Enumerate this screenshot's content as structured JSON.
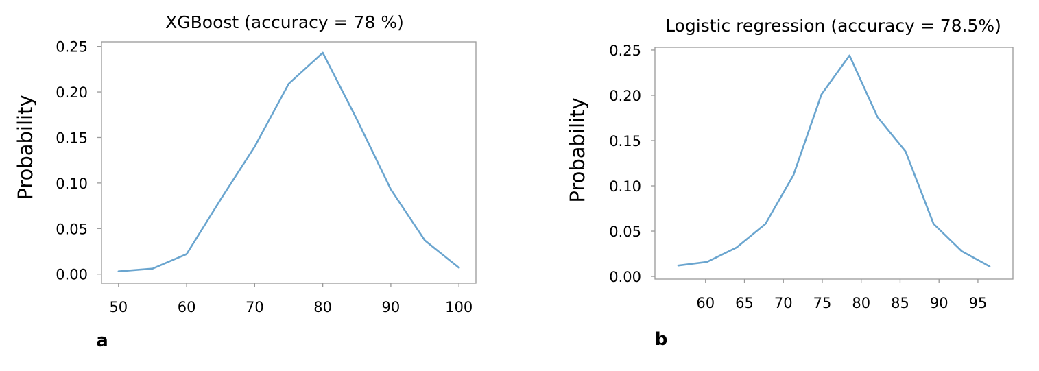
{
  "chart_data": [
    {
      "type": "line",
      "panel_label": "a",
      "title": "XGBoost (accuracy = 78 %)",
      "xlabel": "",
      "ylabel": "Probability",
      "xlim": [
        47.5,
        102.5
      ],
      "ylim": [
        -0.01,
        0.255
      ],
      "xticks": [
        50,
        60,
        70,
        80,
        90,
        100
      ],
      "xtick_labels": [
        "50",
        "60",
        "70",
        "80",
        "90",
        "100"
      ],
      "yticks": [
        0.0,
        0.05,
        0.1,
        0.15,
        0.2,
        0.25
      ],
      "ytick_labels": [
        "0.00",
        "0.05",
        "0.10",
        "0.15",
        "0.20",
        "0.25"
      ],
      "series": [
        {
          "name": "XGBoost",
          "color": "#6aa5cf",
          "x": [
            50,
            55,
            60,
            65,
            70,
            75,
            80,
            85,
            90,
            95,
            100
          ],
          "y": [
            0.003,
            0.006,
            0.022,
            0.082,
            0.14,
            0.209,
            0.243,
            0.17,
            0.093,
            0.037,
            0.007
          ]
        }
      ]
    },
    {
      "type": "line",
      "panel_label": "b",
      "title": "Logistic regression (accuracy = 78.5%)",
      "xlabel": "",
      "ylabel": "Probability",
      "xlim": [
        53.5,
        99.5
      ],
      "ylim": [
        -0.003,
        0.253
      ],
      "xticks": [
        60,
        65,
        70,
        75,
        80,
        85,
        90,
        95
      ],
      "xtick_labels": [
        "60",
        "65",
        "70",
        "75",
        "80",
        "85",
        "90",
        "95"
      ],
      "yticks": [
        0.0,
        0.05,
        0.1,
        0.15,
        0.2,
        0.25
      ],
      "ytick_labels": [
        "0.00",
        "0.05",
        "0.10",
        "0.15",
        "0.20",
        "0.25"
      ],
      "series": [
        {
          "name": "Logistic regression",
          "color": "#6aa5cf",
          "x": [
            56.5,
            60.2,
            64,
            67.7,
            71.3,
            74.9,
            78.5,
            82.1,
            85.7,
            89.3,
            92.9,
            96.5
          ],
          "y": [
            0.012,
            0.016,
            0.032,
            0.058,
            0.112,
            0.201,
            0.244,
            0.176,
            0.138,
            0.058,
            0.028,
            0.011
          ]
        }
      ]
    }
  ]
}
